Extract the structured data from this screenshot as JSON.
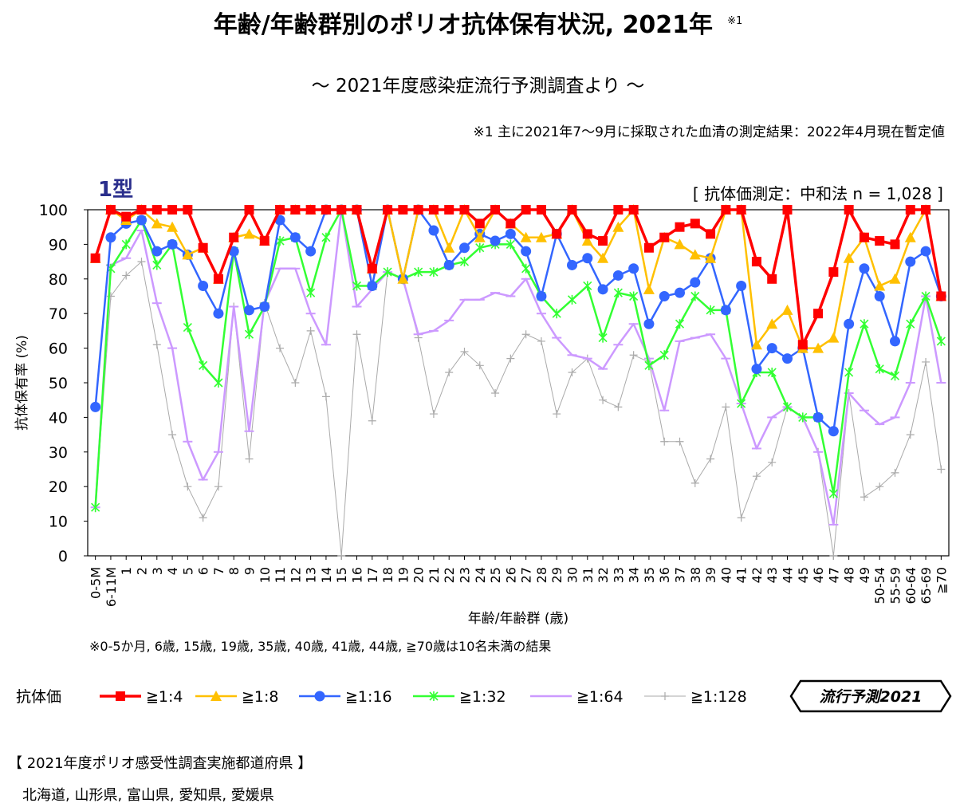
{
  "header": {
    "title": "年齢/年齢群別のポリオ抗体保有状況, 2021年",
    "title_note": "※1",
    "subtitle": "～ 2021年度感染症流行予測調査より ～",
    "footnote1": "※1 主に2021年7～9月に採取された血清の測定結果：2022年4月現在暫定値"
  },
  "chart_data": {
    "type": "line",
    "panel_label": "1型",
    "method_note": "[ 抗体価測定：中和法 n = 1,028 ]",
    "ylabel": "抗体保有率 (%)",
    "xlabel": "年齢/年齢群 (歳)",
    "ylim": [
      0,
      100
    ],
    "yticks": [
      0,
      10,
      20,
      30,
      40,
      50,
      60,
      70,
      80,
      90,
      100
    ],
    "grid": false,
    "legend_position": "bottom",
    "x_note": "※0-5か月, 6歳, 15歳, 19歳, 35歳, 40歳, 41歳, 44歳, ≧70歳は10名未満の結果",
    "legend_title": "抗体価",
    "categories": [
      "0-5M",
      "6-11M",
      "1",
      "2",
      "3",
      "4",
      "5",
      "6",
      "7",
      "8",
      "9",
      "10",
      "11",
      "12",
      "13",
      "14",
      "15",
      "16",
      "17",
      "18",
      "19",
      "20",
      "21",
      "22",
      "23",
      "24",
      "25",
      "26",
      "27",
      "28",
      "29",
      "30",
      "31",
      "32",
      "33",
      "34",
      "35",
      "36",
      "37",
      "38",
      "39",
      "40",
      "41",
      "42",
      "43",
      "44",
      "45",
      "46",
      "47",
      "48",
      "49",
      "50-54",
      "55-59",
      "60-64",
      "65-69",
      "≧70"
    ],
    "series": [
      {
        "name": "≧1:4",
        "color": "#ff0000",
        "marker": "square",
        "values": [
          86,
          100,
          98,
          100,
          100,
          100,
          100,
          89,
          80,
          92,
          100,
          91,
          100,
          100,
          100,
          100,
          100,
          100,
          83,
          100,
          100,
          100,
          100,
          100,
          100,
          96,
          100,
          96,
          100,
          100,
          93,
          100,
          93,
          91,
          100,
          100,
          89,
          92,
          95,
          96,
          93,
          100,
          100,
          85,
          80,
          100,
          61,
          70,
          82,
          100,
          92,
          91,
          90,
          100,
          100,
          75
        ]
      },
      {
        "name": "≧1:8",
        "color": "#ffc000",
        "marker": "triangle",
        "values": [
          86,
          100,
          97,
          100,
          96,
          95,
          87,
          89,
          80,
          92,
          93,
          91,
          100,
          100,
          100,
          100,
          100,
          100,
          83,
          100,
          80,
          100,
          100,
          89,
          100,
          92,
          100,
          96,
          92,
          92,
          93,
          100,
          91,
          86,
          95,
          100,
          77,
          92,
          90,
          87,
          86,
          100,
          100,
          61,
          67,
          71,
          60,
          60,
          63,
          86,
          92,
          78,
          80,
          92,
          100,
          75
        ]
      },
      {
        "name": "≧1:16",
        "color": "#3366ff",
        "marker": "circle",
        "values": [
          43,
          92,
          96,
          97,
          88,
          90,
          87,
          78,
          70,
          88,
          71,
          72,
          97,
          92,
          88,
          100,
          100,
          100,
          78,
          100,
          80,
          100,
          94,
          84,
          89,
          93,
          91,
          93,
          88,
          75,
          93,
          84,
          86,
          77,
          81,
          83,
          67,
          75,
          76,
          79,
          86,
          71,
          78,
          54,
          60,
          57,
          60,
          40,
          36,
          67,
          83,
          75,
          62,
          85,
          88,
          75
        ]
      },
      {
        "name": "≧1:32",
        "color": "#33ff33",
        "marker": "x",
        "values": [
          14,
          83,
          90,
          97,
          84,
          90,
          66,
          55,
          50,
          88,
          64,
          72,
          91,
          92,
          76,
          92,
          100,
          78,
          78,
          82,
          80,
          82,
          82,
          84,
          85,
          89,
          90,
          90,
          83,
          75,
          70,
          74,
          78,
          63,
          76,
          75,
          55,
          58,
          67,
          75,
          71,
          71,
          44,
          53,
          53,
          43,
          40,
          40,
          18,
          53,
          67,
          54,
          52,
          67,
          75,
          62
        ]
      },
      {
        "name": "≧1:64",
        "color": "#cc99ff",
        "marker": "dash",
        "values": [
          14,
          84,
          86,
          94,
          73,
          60,
          33,
          22,
          30,
          72,
          36,
          73,
          83,
          83,
          70,
          61,
          100,
          72,
          77,
          82,
          80,
          64,
          65,
          68,
          74,
          74,
          76,
          75,
          80,
          70,
          63,
          58,
          57,
          54,
          61,
          67,
          57,
          42,
          62,
          63,
          64,
          57,
          44,
          31,
          40,
          43,
          40,
          30,
          9,
          47,
          42,
          38,
          40,
          50,
          75,
          50
        ]
      },
      {
        "name": "≧1:128",
        "color": "#aaaaaa",
        "marker": "plus",
        "values": [
          14,
          75,
          81,
          85,
          61,
          35,
          20,
          11,
          20,
          72,
          28,
          73,
          60,
          50,
          65,
          46,
          0,
          64,
          39,
          82,
          80,
          63,
          41,
          53,
          59,
          55,
          47,
          57,
          64,
          62,
          41,
          53,
          57,
          45,
          43,
          58,
          56,
          33,
          33,
          21,
          28,
          43,
          11,
          23,
          27,
          43,
          40,
          30,
          0,
          47,
          17,
          20,
          24,
          35,
          56,
          25
        ]
      }
    ]
  },
  "brand": "流行予測2021",
  "prefectures": {
    "title": "【 2021年度ポリオ感受性調査実施都道府県 】",
    "list": "北海道, 山形県, 富山県, 愛知県, 愛媛県"
  }
}
